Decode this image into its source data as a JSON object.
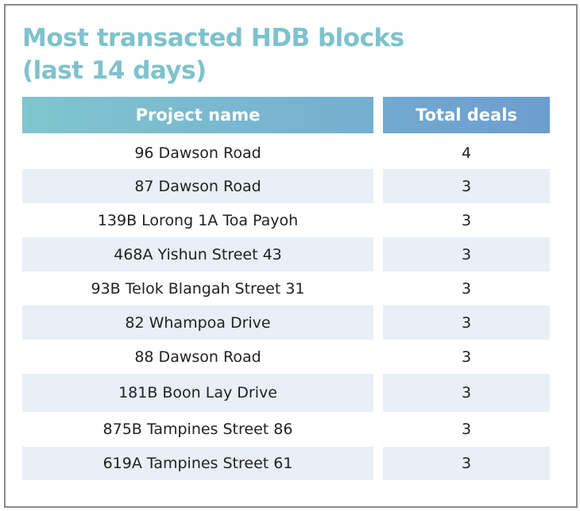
{
  "title": "Most transacted HDB blocks (last 14 days)",
  "table": {
    "columns": [
      "Project name",
      "Total deals"
    ],
    "rows": [
      [
        "96 Dawson Road",
        4
      ],
      [
        "87 Dawson Road",
        3
      ],
      [
        "139B Lorong 1A Toa Payoh",
        3
      ],
      [
        "468A Yishun Street 43",
        3
      ],
      [
        "93B Telok Blangah Street 31",
        3
      ],
      [
        "82 Whampoa Drive",
        3
      ],
      [
        "88 Dawson Road",
        3
      ],
      [
        "181B Boon Lay Drive",
        3
      ],
      [
        "875B Tampines Street 86",
        3
      ],
      [
        "619A Tampines Street 61",
        3
      ]
    ]
  }
}
